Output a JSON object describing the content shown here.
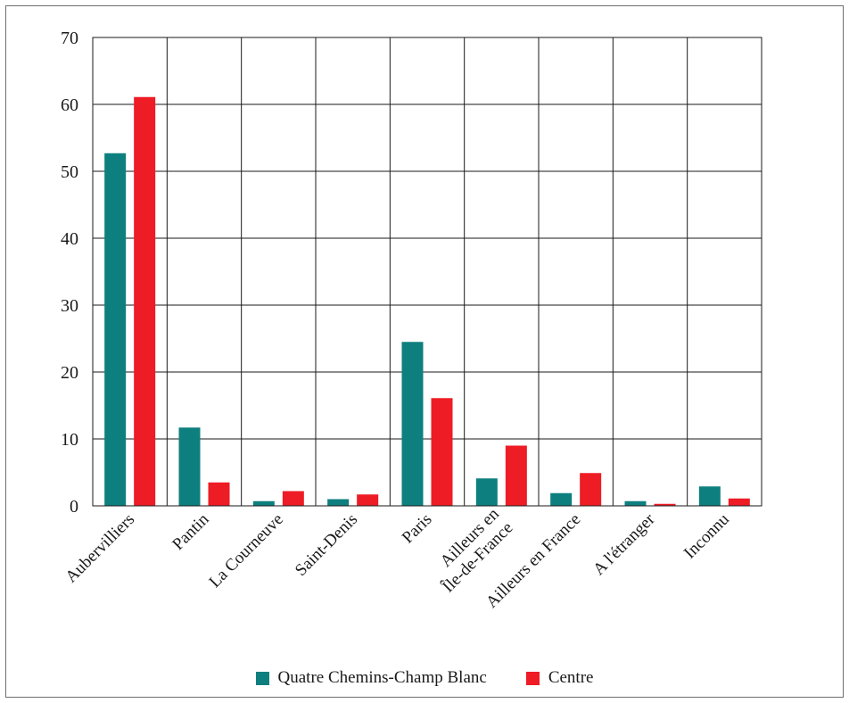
{
  "chart_data": {
    "type": "bar",
    "title": "",
    "xlabel": "",
    "ylabel": "",
    "categories": [
      "Aubervilliers",
      "Pantin",
      "La Courneuve",
      "Saint-Denis",
      "Paris",
      "Ailleurs en\nÎle-de-France",
      "Ailleurs en France",
      "A l'étranger",
      "Inconnu"
    ],
    "series": [
      {
        "name": "Quatre Chemins-Champ Blanc",
        "color": "#0e7f7f",
        "values": [
          52.7,
          11.7,
          0.7,
          1.0,
          24.5,
          4.1,
          1.9,
          0.7,
          2.9
        ]
      },
      {
        "name": "Centre",
        "color": "#ee1c25",
        "values": [
          61.1,
          3.5,
          2.2,
          1.7,
          16.1,
          9.0,
          4.9,
          0.3,
          1.1
        ]
      }
    ],
    "ylim": [
      0,
      70
    ],
    "yticks": [
      0,
      10,
      20,
      30,
      40,
      50,
      60,
      70
    ],
    "grid": true,
    "legend_position": "bottom"
  }
}
